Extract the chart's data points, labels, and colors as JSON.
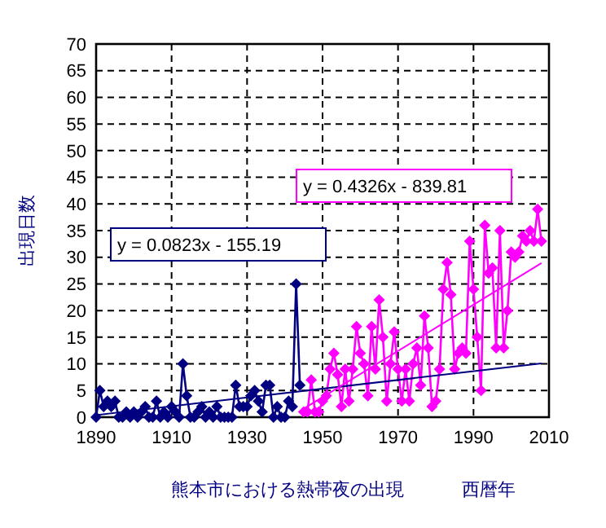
{
  "chart_data": {
    "type": "line",
    "title": "熊本市における熱帯夜の出現",
    "xlabel": "西暦年",
    "ylabel": "出現日数",
    "xlim": [
      1890,
      2010
    ],
    "xticks": [
      1890,
      1910,
      1930,
      1950,
      1970,
      1990,
      2010
    ],
    "ylim": [
      0,
      70
    ],
    "yticks": [
      0,
      5,
      10,
      15,
      20,
      25,
      30,
      35,
      40,
      45,
      50,
      55,
      60,
      65,
      70
    ],
    "grid": true,
    "marker": "diamond",
    "annotations": [
      "y = 0.0823x - 155.19",
      "y = 0.4326x - 839.81"
    ],
    "series": [
      {
        "color": "#000080",
        "x": [
          1890,
          1891,
          1892,
          1893,
          1894,
          1895,
          1896,
          1897,
          1898,
          1899,
          1900,
          1901,
          1902,
          1903,
          1904,
          1905,
          1906,
          1907,
          1908,
          1909,
          1910,
          1911,
          1912,
          1913,
          1914,
          1915,
          1916,
          1917,
          1918,
          1919,
          1920,
          1921,
          1922,
          1923,
          1924,
          1925,
          1926,
          1927,
          1928,
          1929,
          1930,
          1931,
          1932,
          1933,
          1934,
          1935,
          1936,
          1937,
          1938,
          1939,
          1940,
          1941,
          1942,
          1943,
          1944
        ],
        "values": [
          0,
          5,
          2,
          3,
          2,
          3,
          0,
          0,
          1,
          0,
          1,
          0,
          1,
          2,
          0,
          0,
          3,
          0,
          1,
          0,
          2,
          1,
          0,
          10,
          4,
          0,
          0,
          1,
          2,
          0,
          1,
          0,
          2,
          0,
          0,
          0,
          0,
          6,
          2,
          2,
          2,
          4,
          5,
          3,
          1,
          6,
          6,
          0,
          2,
          0,
          0,
          3,
          2,
          25,
          6
        ]
      },
      {
        "color": "#ff00ff",
        "x": [
          1945,
          1946,
          1947,
          1948,
          1949,
          1950,
          1951,
          1952,
          1953,
          1954,
          1955,
          1956,
          1957,
          1958,
          1959,
          1960,
          1961,
          1962,
          1963,
          1964,
          1965,
          1966,
          1967,
          1968,
          1969,
          1970,
          1971,
          1972,
          1973,
          1974,
          1975,
          1976,
          1977,
          1978,
          1979,
          1980,
          1981,
          1982,
          1983,
          1984,
          1985,
          1986,
          1987,
          1988,
          1989,
          1990,
          1991,
          1992,
          1993,
          1994,
          1995,
          1996,
          1997,
          1998,
          1999,
          2000,
          2001,
          2002,
          2003,
          2004,
          2005,
          2006,
          2007,
          2008
        ],
        "values": [
          1,
          1,
          7,
          1,
          1,
          3,
          4,
          9,
          12,
          8,
          2,
          9,
          3,
          9,
          17,
          12,
          10,
          4,
          17,
          9,
          22,
          15,
          3,
          10,
          16,
          9,
          3,
          9,
          3,
          10,
          13,
          6,
          19,
          13,
          2,
          3,
          9,
          24,
          29,
          23,
          9,
          12,
          13,
          12,
          33,
          24,
          15,
          5,
          36,
          27,
          28,
          13,
          35,
          13,
          20,
          31,
          30,
          31,
          34,
          33,
          35,
          33,
          39,
          33
        ]
      },
      {
        "type": "line",
        "marker": "none",
        "color": "#000080",
        "x": [
          1890,
          2008
        ],
        "values": [
          0.4,
          10.1
        ]
      },
      {
        "type": "line",
        "marker": "none",
        "color": "#ff00ff",
        "x": [
          1945,
          2008
        ],
        "values": [
          1.6,
          28.9
        ]
      }
    ]
  }
}
